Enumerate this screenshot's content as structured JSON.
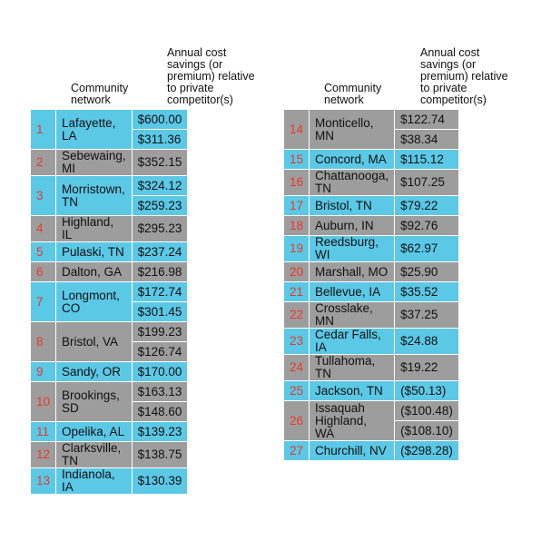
{
  "headers": {
    "network": "Community network",
    "cost": "Annual cost savings (or premium) relative to private competitor(s)"
  },
  "colors": {
    "blue": "#5bc8e6",
    "gray": "#9d9d9d",
    "number": "#e8392b"
  },
  "left_rows": [
    {
      "n": "1",
      "name": "Lafayette, LA",
      "values": [
        "$600.00",
        "$311.36"
      ],
      "color": "blue"
    },
    {
      "n": "2",
      "name": "Sebewaing, MI",
      "values": [
        "$352.15"
      ],
      "color": "gray"
    },
    {
      "n": "3",
      "name": "Morristown, TN",
      "values": [
        "$324.12",
        "$259.23"
      ],
      "color": "blue"
    },
    {
      "n": "4",
      "name": "Highland, IL",
      "values": [
        "$295.23"
      ],
      "color": "gray"
    },
    {
      "n": "5",
      "name": "Pulaski, TN",
      "values": [
        "$237.24"
      ],
      "color": "blue"
    },
    {
      "n": "6",
      "name": "Dalton, GA",
      "values": [
        "$216.98"
      ],
      "color": "gray"
    },
    {
      "n": "7",
      "name": "Longmont, CO",
      "values": [
        "$172.74",
        "$301.45"
      ],
      "color": "blue"
    },
    {
      "n": "8",
      "name": "Bristol, VA",
      "values": [
        "$199.23",
        "$126.74"
      ],
      "color": "gray"
    },
    {
      "n": "9",
      "name": "Sandy, OR",
      "values": [
        "$170.00"
      ],
      "color": "blue"
    },
    {
      "n": "10",
      "name": "Brookings, SD",
      "values": [
        "$163.13",
        "$148.60"
      ],
      "color": "gray"
    },
    {
      "n": "11",
      "name": "Opelika, AL",
      "values": [
        "$139.23"
      ],
      "color": "blue"
    },
    {
      "n": "12",
      "name": "Clarksville, TN",
      "values": [
        "$138.75"
      ],
      "color": "gray"
    },
    {
      "n": "13",
      "name": "Indianola, IA",
      "values": [
        "$130.39"
      ],
      "color": "blue"
    }
  ],
  "right_rows": [
    {
      "n": "14",
      "name": "Monticello, MN",
      "values": [
        "$122.74",
        "$38.34"
      ],
      "color": "gray"
    },
    {
      "n": "15",
      "name": "Concord, MA",
      "values": [
        "$115.12"
      ],
      "color": "blue"
    },
    {
      "n": "16",
      "name": "Chattanooga, TN",
      "values": [
        "$107.25"
      ],
      "color": "gray"
    },
    {
      "n": "17",
      "name": "Bristol, TN",
      "values": [
        "$79.22"
      ],
      "color": "blue"
    },
    {
      "n": "18",
      "name": "Auburn, IN",
      "values": [
        "$92.76"
      ],
      "color": "gray"
    },
    {
      "n": "19",
      "name": "Reedsburg, WI",
      "values": [
        "$62.97"
      ],
      "color": "blue"
    },
    {
      "n": "20",
      "name": "Marshall, MO",
      "values": [
        "$25.90"
      ],
      "color": "gray"
    },
    {
      "n": "21",
      "name": "Bellevue, IA",
      "values": [
        "$35.52"
      ],
      "color": "blue"
    },
    {
      "n": "22",
      "name": "Crosslake, MN",
      "values": [
        "$37.25"
      ],
      "color": "gray"
    },
    {
      "n": "23",
      "name": "Cedar Falls, IA",
      "values": [
        "$24.88"
      ],
      "color": "blue"
    },
    {
      "n": "24",
      "name": "Tullahoma, TN",
      "values": [
        "$19.22"
      ],
      "color": "gray"
    },
    {
      "n": "25",
      "name": "Jackson, TN",
      "values": [
        "($50.13)"
      ],
      "color": "blue"
    },
    {
      "n": "26",
      "name": "Issaquah Highland, WA",
      "values": [
        "($100.48)",
        "($108.10)"
      ],
      "color": "gray"
    },
    {
      "n": "27",
      "name": "Churchill, NV",
      "values": [
        "($298.28)"
      ],
      "color": "blue"
    }
  ]
}
